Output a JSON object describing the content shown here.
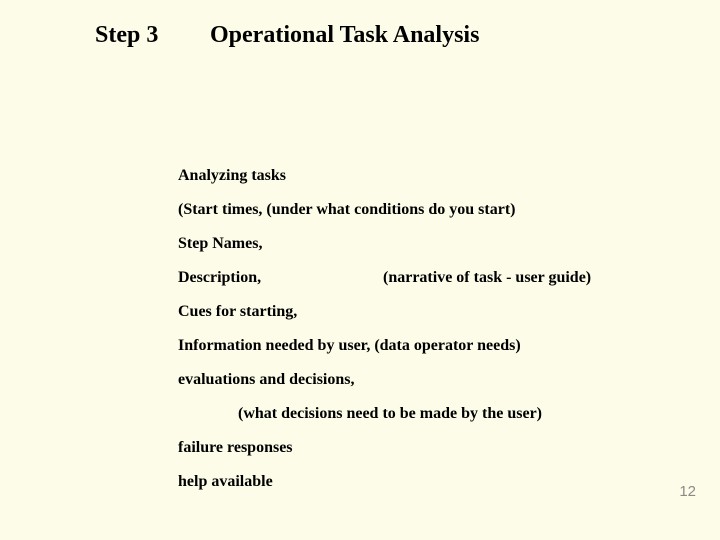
{
  "colors": {
    "background": "#fcfce8",
    "text": "#000000",
    "page_number": "#8a8a8a"
  },
  "typography": {
    "heading_fontsize": 24,
    "body_fontsize": 16,
    "pagenum_fontsize": 15,
    "font_family": "Times New Roman",
    "font_weight": "bold"
  },
  "header": {
    "step_label": "Step 3",
    "title": "Operational Task Analysis"
  },
  "content": {
    "line1": "Analyzing tasks",
    "line2": "(Start times,  (under what conditions do you start)",
    "line3": "Step Names,",
    "line4_left": "Description,",
    "line4_right": "(narrative of task - user guide)",
    "line5": "Cues for starting,",
    "line6": "Information needed by user,  (data operator needs)",
    "line7": "evaluations and decisions,",
    "line8": "(what decisions need to be made by the user)",
    "line9": "failure responses",
    "line10": "help available"
  },
  "page_number": "12"
}
